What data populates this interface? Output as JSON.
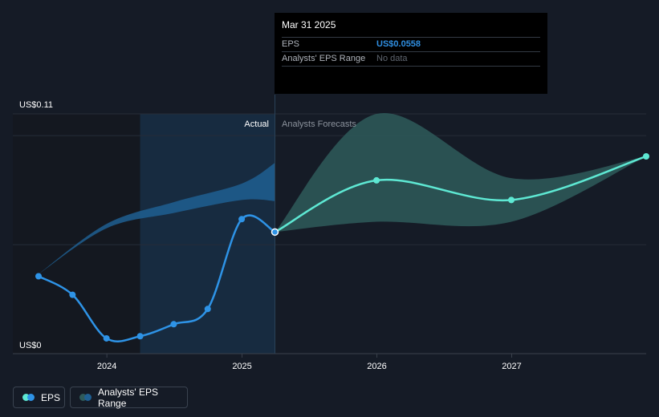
{
  "tooltip": {
    "date": "Mar 31 2025",
    "eps_label": "EPS",
    "eps_value": "US$0.0558",
    "range_label": "Analysts' EPS Range",
    "range_value": "No data"
  },
  "region_labels": {
    "actual": "Actual",
    "forecast": "Analysts Forecasts"
  },
  "legend": {
    "eps_label": "EPS",
    "range_label": "Analysts' EPS Range"
  },
  "colors": {
    "background": "#151b26",
    "eps_line": "#2e93e6",
    "forecast_line": "#5ee8d3",
    "forecast_band": "#2e5a5a",
    "actual_band": "#1f5f92",
    "highlight_region": "#172b40"
  },
  "chart_data": {
    "type": "line",
    "y_top_label": "US$0.11",
    "y_bottom_label": "US$0",
    "ylim": [
      0,
      0.11
    ],
    "xlim": [
      "2023-06-30",
      "2027-12-31"
    ],
    "x_ticks": [
      "2024",
      "2025",
      "2026",
      "2027"
    ],
    "x_tick_dates": [
      "2024-01-01",
      "2025-01-01",
      "2026-01-01",
      "2027-01-01"
    ],
    "highlight_start": "2024-03-31",
    "divider_date": "2025-03-31",
    "series": [
      {
        "name": "EPS",
        "points": [
          {
            "x": "2023-06-30",
            "y": 0.0355
          },
          {
            "x": "2023-09-30",
            "y": 0.027
          },
          {
            "x": "2023-12-31",
            "y": 0.007
          },
          {
            "x": "2024-03-31",
            "y": 0.008
          },
          {
            "x": "2024-06-30",
            "y": 0.0135
          },
          {
            "x": "2024-09-30",
            "y": 0.0205
          },
          {
            "x": "2024-12-31",
            "y": 0.0617
          },
          {
            "x": "2025-03-31",
            "y": 0.0558
          }
        ]
      },
      {
        "name": "Analysts Forecasts",
        "points": [
          {
            "x": "2025-03-31",
            "y": 0.0558
          },
          {
            "x": "2025-12-31",
            "y": 0.0795
          },
          {
            "x": "2026-12-31",
            "y": 0.0705
          },
          {
            "x": "2027-12-31",
            "y": 0.0905
          }
        ]
      }
    ],
    "actual_range_band": {
      "x": [
        "2023-06-30",
        "2023-12-31",
        "2024-06-30",
        "2024-12-31",
        "2025-03-31"
      ],
      "upper": [
        0.0365,
        0.0595,
        0.0695,
        0.078,
        0.0875
      ],
      "lower": [
        0.0365,
        0.0575,
        0.0645,
        0.0705,
        0.07
      ]
    },
    "forecast_range_band": {
      "x": [
        "2025-03-31",
        "2025-12-31",
        "2026-12-31",
        "2027-12-31"
      ],
      "upper": [
        0.0558,
        0.11,
        0.0805,
        0.0905
      ],
      "lower": [
        0.0558,
        0.0605,
        0.0605,
        0.0905
      ]
    }
  }
}
